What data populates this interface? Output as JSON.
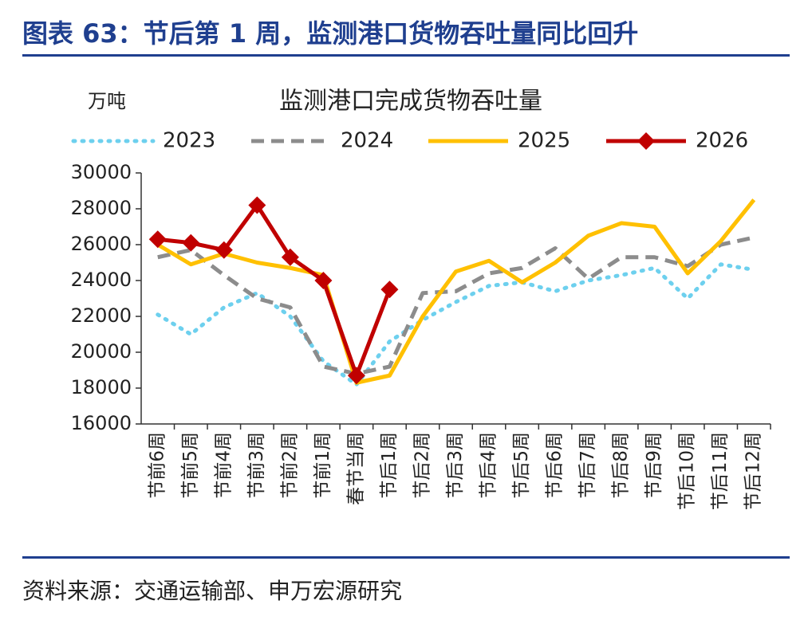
{
  "header": {
    "title": "图表 63：节后第 1 周，监测港口货物吞吐量同比回升"
  },
  "chart_data": {
    "type": "line",
    "title": "监测港口完成货物吞吐量",
    "y_unit": "万吨",
    "categories": [
      "节前6周",
      "节前5周",
      "节前4周",
      "节前3周",
      "节前2周",
      "节前1周",
      "春节当周",
      "节后1周",
      "节后2周",
      "节后3周",
      "节后4周",
      "节后5周",
      "节后6周",
      "节后7周",
      "节后8周",
      "节后9周",
      "节后10周",
      "节后11周",
      "节后12周"
    ],
    "series": [
      {
        "name": "2023",
        "color": "#6dd0ee",
        "style": "dotted",
        "values": [
          22100,
          21000,
          22500,
          23300,
          22000,
          19500,
          18200,
          20600,
          21800,
          22800,
          23700,
          23900,
          23400,
          24000,
          24300,
          24700,
          23000,
          24900,
          24600
        ]
      },
      {
        "name": "2024",
        "color": "#8c8c8c",
        "style": "dashed",
        "values": [
          25300,
          25700,
          24300,
          23000,
          22500,
          19200,
          18800,
          19200,
          23300,
          23400,
          24400,
          24700,
          25800,
          24100,
          25300,
          25300,
          24800,
          26000,
          26400
        ]
      },
      {
        "name": "2025",
        "color": "#ffc000",
        "style": "solid",
        "values": [
          26000,
          24900,
          25500,
          25000,
          24700,
          24300,
          18300,
          18700,
          22000,
          24500,
          25100,
          23900,
          25000,
          26500,
          27200,
          27000,
          24400,
          26200,
          28500
        ]
      },
      {
        "name": "2026",
        "color": "#c00000",
        "style": "solid",
        "marker": "diamond",
        "values": [
          26300,
          26100,
          25700,
          28200,
          25300,
          24000,
          18700,
          23500,
          null,
          null,
          null,
          null,
          null,
          null,
          null,
          null,
          null,
          null,
          null
        ]
      }
    ],
    "ylim": [
      16000,
      30000
    ],
    "yticks": [
      16000,
      18000,
      20000,
      22000,
      24000,
      26000,
      28000,
      30000
    ],
    "grid": false,
    "legend": "top"
  },
  "footer": {
    "source": "资料来源：交通运输部、申万宏源研究"
  }
}
